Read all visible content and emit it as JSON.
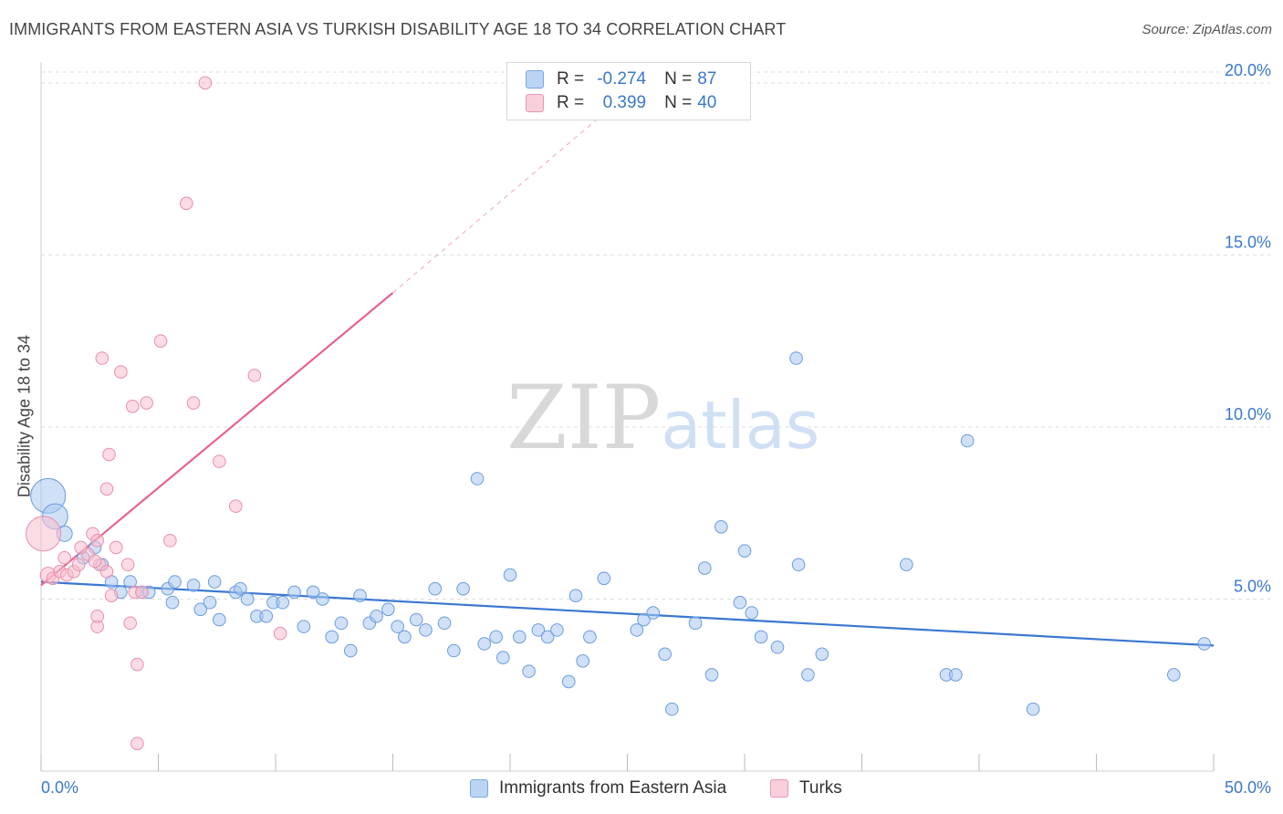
{
  "header": {
    "title": "IMMIGRANTS FROM EASTERN ASIA VS TURKISH DISABILITY AGE 18 TO 34 CORRELATION CHART",
    "source": "Source: ZipAtlas.com"
  },
  "watermark": {
    "zip": "ZIP",
    "atlas": "atlas"
  },
  "legend": {
    "rows": [
      {
        "r_label": "R =",
        "r_value": "-0.274",
        "n_label": "N =",
        "n_value": "87"
      },
      {
        "r_label": "R =",
        "r_value": "0.399",
        "n_label": "N =",
        "n_value": "40"
      }
    ]
  },
  "colors": {
    "blue_fill": "#a9c8f0",
    "blue_stroke": "#6a9be0",
    "blue_line": "#3b78d0",
    "pink_fill": "#f7bfd0",
    "pink_stroke": "#ea8eaa",
    "pink_line": "#e8638f",
    "axis_label": "#3b78c9",
    "grid": "#dddddd"
  },
  "chart_data": {
    "type": "scatter",
    "title": "IMMIGRANTS FROM EASTERN ASIA VS TURKISH DISABILITY AGE 18 TO 34 CORRELATION CHART",
    "xlabel": "",
    "ylabel": "Disability Age 18 to 34",
    "xlim": [
      0,
      50
    ],
    "ylim": [
      0,
      20.5
    ],
    "x_tick_labels": [
      {
        "value": 0,
        "label": "0.0%"
      },
      {
        "value": 50,
        "label": "50.0%"
      }
    ],
    "y_ticks": [
      {
        "value": 5,
        "label": "5.0%"
      },
      {
        "value": 10,
        "label": "10.0%"
      },
      {
        "value": 15,
        "label": "15.0%"
      },
      {
        "value": 20,
        "label": "20.0%"
      }
    ],
    "grid": "horizontal dashed",
    "series": [
      {
        "name": "Immigrants from Eastern Asia",
        "color": "blue",
        "R": -0.274,
        "N": 87,
        "trend": {
          "x0": 0,
          "y0": 5.5,
          "x1": 50,
          "y1": 3.65
        },
        "points": [
          [
            0.3,
            8.0,
            2.0
          ],
          [
            0.6,
            7.4,
            1.4
          ],
          [
            1.0,
            6.9,
            1.0
          ],
          [
            1.8,
            6.2,
            0.8
          ],
          [
            2.3,
            6.5,
            0.8
          ],
          [
            2.6,
            6.0,
            0.8
          ],
          [
            3.0,
            5.5,
            0.8
          ],
          [
            3.4,
            5.2,
            0.8
          ],
          [
            3.8,
            5.5,
            0.8
          ],
          [
            4.3,
            5.2,
            0.8
          ],
          [
            4.6,
            5.2,
            0.8
          ],
          [
            5.4,
            5.3,
            0.8
          ],
          [
            5.7,
            5.5,
            0.8
          ],
          [
            5.6,
            4.9,
            0.8
          ],
          [
            6.5,
            5.4,
            0.8
          ],
          [
            6.8,
            4.7,
            0.8
          ],
          [
            7.2,
            4.9,
            0.8
          ],
          [
            7.4,
            5.5,
            0.8
          ],
          [
            7.6,
            4.4,
            0.8
          ],
          [
            8.3,
            5.2,
            0.8
          ],
          [
            8.5,
            5.3,
            0.8
          ],
          [
            8.8,
            5.0,
            0.8
          ],
          [
            9.2,
            4.5,
            0.8
          ],
          [
            9.6,
            4.5,
            0.8
          ],
          [
            9.9,
            4.9,
            0.8
          ],
          [
            10.3,
            4.9,
            0.8
          ],
          [
            10.8,
            5.2,
            0.8
          ],
          [
            11.2,
            4.2,
            0.8
          ],
          [
            11.6,
            5.2,
            0.8
          ],
          [
            12.0,
            5.0,
            0.8
          ],
          [
            12.4,
            3.9,
            0.8
          ],
          [
            12.8,
            4.3,
            0.8
          ],
          [
            13.2,
            3.5,
            0.8
          ],
          [
            13.6,
            5.1,
            0.8
          ],
          [
            14.0,
            4.3,
            0.8
          ],
          [
            14.3,
            4.5,
            0.8
          ],
          [
            14.8,
            4.7,
            0.8
          ],
          [
            15.2,
            4.2,
            0.8
          ],
          [
            15.5,
            3.9,
            0.8
          ],
          [
            16.0,
            4.4,
            0.8
          ],
          [
            16.4,
            4.1,
            0.8
          ],
          [
            16.8,
            5.3,
            0.8
          ],
          [
            17.2,
            4.3,
            0.8
          ],
          [
            17.6,
            3.5,
            0.8
          ],
          [
            18.0,
            5.3,
            0.8
          ],
          [
            18.6,
            8.5,
            0.8
          ],
          [
            18.9,
            3.7,
            0.8
          ],
          [
            19.4,
            3.9,
            0.8
          ],
          [
            19.7,
            3.3,
            0.8
          ],
          [
            20.0,
            5.7,
            0.8
          ],
          [
            20.4,
            3.9,
            0.8
          ],
          [
            20.8,
            2.9,
            0.8
          ],
          [
            21.2,
            4.1,
            0.8
          ],
          [
            21.6,
            3.9,
            0.8
          ],
          [
            22.0,
            4.1,
            0.8
          ],
          [
            22.5,
            2.6,
            0.8
          ],
          [
            22.8,
            5.1,
            0.8
          ],
          [
            23.1,
            3.2,
            0.8
          ],
          [
            23.4,
            3.9,
            0.8
          ],
          [
            24.0,
            5.6,
            0.8
          ],
          [
            25.4,
            4.1,
            0.8
          ],
          [
            25.7,
            4.4,
            0.8
          ],
          [
            26.1,
            4.6,
            0.8
          ],
          [
            26.6,
            3.4,
            0.8
          ],
          [
            26.9,
            1.8,
            0.8
          ],
          [
            27.9,
            4.3,
            0.8
          ],
          [
            28.3,
            5.9,
            0.8
          ],
          [
            28.6,
            2.8,
            0.8
          ],
          [
            29.0,
            7.1,
            0.8
          ],
          [
            29.8,
            4.9,
            0.8
          ],
          [
            30.0,
            6.4,
            0.8
          ],
          [
            30.3,
            4.6,
            0.8
          ],
          [
            30.7,
            3.9,
            0.8
          ],
          [
            31.4,
            3.6,
            0.8
          ],
          [
            32.2,
            12.0,
            0.8
          ],
          [
            32.3,
            6.0,
            0.8
          ],
          [
            32.7,
            2.8,
            0.8
          ],
          [
            33.3,
            3.4,
            0.8
          ],
          [
            36.9,
            6.0,
            0.8
          ],
          [
            38.6,
            2.8,
            0.8
          ],
          [
            39.0,
            2.8,
            0.8
          ],
          [
            39.5,
            9.6,
            0.8
          ],
          [
            42.3,
            1.8,
            0.8
          ],
          [
            48.3,
            2.8,
            0.8
          ],
          [
            49.6,
            3.7,
            0.8
          ]
        ]
      },
      {
        "name": "Turks",
        "color": "pink",
        "R": 0.399,
        "N": 40,
        "trend": {
          "x0": 0,
          "y0": 5.4,
          "x1": 15,
          "y1": 13.9
        },
        "trend_dashed": {
          "x0": 15,
          "y0": 13.9,
          "x1": 24.5,
          "y1": 19.4
        },
        "points": [
          [
            0.1,
            6.9,
            2.0
          ],
          [
            0.3,
            5.7,
            1.0
          ],
          [
            0.5,
            5.6,
            0.8
          ],
          [
            0.8,
            5.8,
            0.8
          ],
          [
            1.1,
            5.7,
            0.8
          ],
          [
            1.0,
            6.2,
            0.8
          ],
          [
            1.4,
            5.8,
            0.8
          ],
          [
            1.6,
            6.0,
            0.8
          ],
          [
            2.0,
            6.3,
            0.8
          ],
          [
            2.2,
            6.9,
            0.8
          ],
          [
            2.4,
            6.7,
            0.8
          ],
          [
            2.5,
            6.0,
            0.8
          ],
          [
            2.8,
            5.8,
            0.8
          ],
          [
            2.3,
            6.1,
            0.8
          ],
          [
            2.4,
            4.2,
            0.8
          ],
          [
            2.4,
            4.5,
            0.8
          ],
          [
            2.6,
            12.0,
            0.8
          ],
          [
            2.8,
            8.2,
            0.8
          ],
          [
            2.9,
            9.2,
            0.8
          ],
          [
            3.0,
            5.1,
            0.8
          ],
          [
            3.2,
            6.5,
            0.8
          ],
          [
            3.4,
            11.6,
            0.8
          ],
          [
            3.7,
            6.0,
            0.8
          ],
          [
            3.8,
            4.3,
            0.8
          ],
          [
            3.9,
            10.6,
            0.8
          ],
          [
            4.0,
            5.2,
            0.8
          ],
          [
            4.1,
            3.1,
            0.8
          ],
          [
            4.3,
            5.2,
            0.8
          ],
          [
            4.5,
            10.7,
            0.8
          ],
          [
            4.1,
            0.8,
            0.8
          ],
          [
            5.1,
            12.5,
            0.8
          ],
          [
            5.5,
            6.7,
            0.8
          ],
          [
            6.2,
            16.5,
            0.8
          ],
          [
            6.5,
            10.7,
            0.8
          ],
          [
            7.0,
            20.0,
            0.8
          ],
          [
            7.6,
            9.0,
            0.8
          ],
          [
            8.3,
            7.7,
            0.8
          ],
          [
            9.1,
            11.5,
            0.8
          ],
          [
            10.2,
            4.0,
            0.8
          ],
          [
            1.7,
            6.5,
            0.8
          ]
        ]
      }
    ]
  },
  "bottom_legend": {
    "items": [
      {
        "label": "Immigrants from Eastern Asia"
      },
      {
        "label": "Turks"
      }
    ]
  }
}
